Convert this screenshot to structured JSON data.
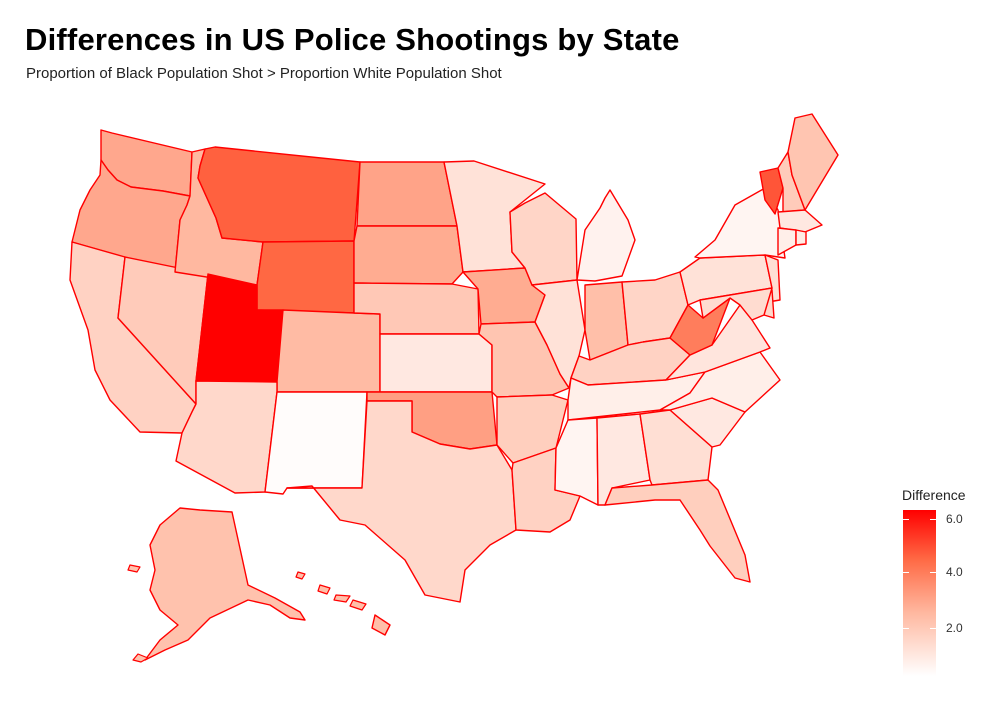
{
  "title": "Differences in US Police Shootings by State",
  "subtitle": "Proportion of Black Population Shot  >  Proportion White Population Shot",
  "legend": {
    "title": "Difference",
    "ticks": [
      "6.0",
      "4.0",
      "2.0"
    ],
    "range": [
      0.4,
      6.2
    ]
  },
  "colors": {
    "low": "#ffffff",
    "high": "#ff0000",
    "border": "#ff0000"
  },
  "map_data": {
    "type": "choropleth",
    "variable": "Difference",
    "states": [
      {
        "id": "WA",
        "value": 3.0
      },
      {
        "id": "OR",
        "value": 3.0
      },
      {
        "id": "CA",
        "value": 1.8
      },
      {
        "id": "ID",
        "value": 2.6
      },
      {
        "id": "NV",
        "value": 2.0
      },
      {
        "id": "UT",
        "value": 6.2
      },
      {
        "id": "AZ",
        "value": 1.6
      },
      {
        "id": "MT",
        "value": 4.6
      },
      {
        "id": "WY",
        "value": 4.5
      },
      {
        "id": "CO",
        "value": 2.5
      },
      {
        "id": "NM",
        "value": 0.5
      },
      {
        "id": "ND",
        "value": 3.1
      },
      {
        "id": "SD",
        "value": 2.9
      },
      {
        "id": "NE",
        "value": 2.1
      },
      {
        "id": "KS",
        "value": 1.1
      },
      {
        "id": "OK",
        "value": 3.2
      },
      {
        "id": "TX",
        "value": 1.6
      },
      {
        "id": "MN",
        "value": 1.3
      },
      {
        "id": "IA",
        "value": 2.9
      },
      {
        "id": "MO",
        "value": 2.2
      },
      {
        "id": "AR",
        "value": 1.9
      },
      {
        "id": "LA",
        "value": 1.8
      },
      {
        "id": "WI",
        "value": 1.7
      },
      {
        "id": "IL",
        "value": 1.3
      },
      {
        "id": "MI",
        "value": 0.8
      },
      {
        "id": "IN",
        "value": 2.4
      },
      {
        "id": "OH",
        "value": 1.7
      },
      {
        "id": "KY",
        "value": 1.8
      },
      {
        "id": "TN",
        "value": 0.9
      },
      {
        "id": "MS",
        "value": 0.7
      },
      {
        "id": "AL",
        "value": 1.1
      },
      {
        "id": "GA",
        "value": 1.4
      },
      {
        "id": "FL",
        "value": 1.9
      },
      {
        "id": "SC",
        "value": 1.1
      },
      {
        "id": "NC",
        "value": 0.9
      },
      {
        "id": "VA",
        "value": 1.2
      },
      {
        "id": "WV",
        "value": 4.0
      },
      {
        "id": "PA",
        "value": 1.3
      },
      {
        "id": "NY",
        "value": 0.7
      },
      {
        "id": "VT",
        "value": 4.8
      },
      {
        "id": "NH",
        "value": 2.0
      },
      {
        "id": "ME",
        "value": 2.2
      },
      {
        "id": "MA",
        "value": 1.1
      },
      {
        "id": "CT",
        "value": 0.9
      },
      {
        "id": "RI",
        "value": 1.0
      },
      {
        "id": "NJ",
        "value": 1.4
      },
      {
        "id": "DE",
        "value": 1.6
      },
      {
        "id": "MD",
        "value": 1.5
      },
      {
        "id": "AK",
        "value": 2.3
      },
      {
        "id": "HI",
        "value": 2.4
      }
    ]
  }
}
